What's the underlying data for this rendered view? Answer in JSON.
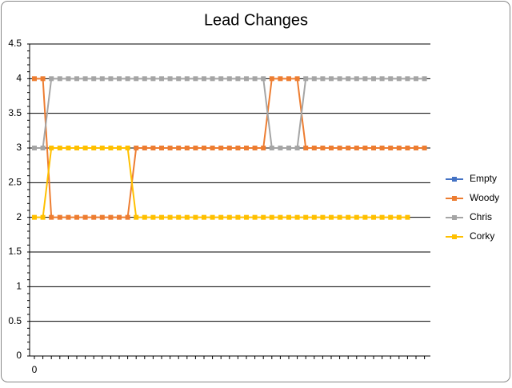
{
  "chart_data": {
    "type": "line",
    "title": "Lead Changes",
    "categories": [
      "0",
      null,
      null,
      null,
      null,
      null,
      null,
      null,
      null,
      null,
      null,
      null,
      null,
      null,
      null,
      null,
      null,
      null,
      null,
      null,
      null,
      null,
      null,
      null,
      null,
      null,
      null,
      null,
      null,
      null,
      null,
      null,
      null,
      null,
      null,
      null,
      null,
      null,
      null,
      null,
      null,
      null,
      null,
      null,
      null,
      null,
      null
    ],
    "series": [
      {
        "name": "Empty",
        "color": "#4472c4",
        "values": [
          null,
          null,
          null,
          null,
          null,
          null,
          null,
          null,
          null,
          null,
          null,
          null,
          null,
          null,
          null,
          null,
          null,
          null,
          null,
          null,
          null,
          null,
          null,
          null,
          null,
          null,
          null,
          null,
          null,
          null,
          null,
          null,
          null,
          null,
          null,
          null,
          null,
          null,
          null,
          null,
          null,
          null,
          null,
          null,
          null,
          null,
          null
        ]
      },
      {
        "name": "Woody",
        "color": "#ed7d31",
        "values": [
          4,
          4,
          2,
          2,
          2,
          2,
          2,
          2,
          2,
          2,
          2,
          2,
          3,
          3,
          3,
          3,
          3,
          3,
          3,
          3,
          3,
          3,
          3,
          3,
          3,
          3,
          3,
          3,
          4,
          4,
          4,
          4,
          3,
          3,
          3,
          3,
          3,
          3,
          3,
          3,
          3,
          3,
          3,
          3,
          3,
          3,
          3
        ]
      },
      {
        "name": "Chris",
        "color": "#a5a5a5",
        "values": [
          3,
          3,
          4,
          4,
          4,
          4,
          4,
          4,
          4,
          4,
          4,
          4,
          4,
          4,
          4,
          4,
          4,
          4,
          4,
          4,
          4,
          4,
          4,
          4,
          4,
          4,
          4,
          4,
          3,
          3,
          3,
          3,
          4,
          4,
          4,
          4,
          4,
          4,
          4,
          4,
          4,
          4,
          4,
          4,
          4,
          4,
          4
        ]
      },
      {
        "name": "Corky",
        "color": "#ffc000",
        "values": [
          2,
          2,
          3,
          3,
          3,
          3,
          3,
          3,
          3,
          3,
          3,
          3,
          2,
          2,
          2,
          2,
          2,
          2,
          2,
          2,
          2,
          2,
          2,
          2,
          2,
          2,
          2,
          2,
          2,
          2,
          2,
          2,
          2,
          2,
          2,
          2,
          2,
          2,
          2,
          2,
          2,
          2,
          2,
          2,
          2,
          null,
          null
        ]
      }
    ],
    "ylim": [
      0,
      4.5
    ],
    "yticks": [
      0,
      0.5,
      1,
      1.5,
      2,
      2.5,
      3,
      3.5,
      4,
      4.5
    ],
    "grid": true,
    "legend": "right"
  }
}
